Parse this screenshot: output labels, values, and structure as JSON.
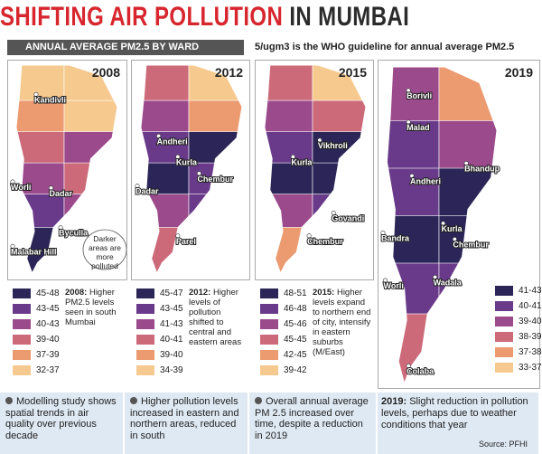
{
  "header": {
    "title_red": "SHIFTING AIR POLLUTION",
    "title_dark": "IN MUMBAI",
    "subtitle": "ANNUAL AVERAGE PM2.5 BY WARD",
    "note": "5/ugm3 is the WHO guideline for annual average PM2.5"
  },
  "panels": [
    {
      "year": "2008",
      "places": [
        "Kandivli",
        "Worli",
        "Dadar",
        "Byculla",
        "Malabar Hill"
      ],
      "callout": "Darker areas are more polluted",
      "legend": [
        {
          "label": "45-48",
          "color": "#2b2657"
        },
        {
          "label": "43-45",
          "color": "#6a3a8a"
        },
        {
          "label": "40-43",
          "color": "#9b4a8c"
        },
        {
          "label": "39-40",
          "color": "#cc6a7a"
        },
        {
          "label": "37-39",
          "color": "#ec9a70"
        },
        {
          "label": "32-37",
          "color": "#f6c98f"
        }
      ],
      "note_year": "2008:",
      "note": "Higher PM2.5 levels seen in south Mumbai"
    },
    {
      "year": "2012",
      "places": [
        "Andheri",
        "Kurla",
        "Chembur",
        "Dadar",
        "Parel"
      ],
      "legend": [
        {
          "label": "45-47",
          "color": "#2b2657"
        },
        {
          "label": "43-45",
          "color": "#6a3a8a"
        },
        {
          "label": "41-43",
          "color": "#9b4a8c"
        },
        {
          "label": "40-41",
          "color": "#cc6a7a"
        },
        {
          "label": "39-40",
          "color": "#ec9a70"
        },
        {
          "label": "34-39",
          "color": "#f6c98f"
        }
      ],
      "note_year": "2012:",
      "note": "Higher levels of pollution shifted to central and eastern areas"
    },
    {
      "year": "2015",
      "places": [
        "Vikhroli",
        "Kurla",
        "Govandi",
        "Chembur"
      ],
      "legend": [
        {
          "label": "48-51",
          "color": "#2b2657"
        },
        {
          "label": "46-48",
          "color": "#6a3a8a"
        },
        {
          "label": "45-46",
          "color": "#9b4a8c"
        },
        {
          "label": "45-45",
          "color": "#cc6a7a"
        },
        {
          "label": "42-45",
          "color": "#ec9a70"
        },
        {
          "label": "39-42",
          "color": "#f6c98f"
        }
      ],
      "note_year": "2015:",
      "note": "Higher levels expand to northern end of city, intensify in eastern suburbs (M/East)"
    },
    {
      "year": "2019",
      "places": [
        "Borivli",
        "Malad",
        "Bhandup",
        "Andheri",
        "Bandra",
        "Kurla",
        "Chembur",
        "Worli",
        "Wadala",
        "Colaba"
      ],
      "legend": [
        {
          "label": "41-43",
          "color": "#2b2657"
        },
        {
          "label": "40-41",
          "color": "#6a3a8a"
        },
        {
          "label": "39-40",
          "color": "#9b4a8c"
        },
        {
          "label": "38-39",
          "color": "#cc6a7a"
        },
        {
          "label": "37-38",
          "color": "#ec9a70"
        },
        {
          "label": "33-37",
          "color": "#f6c98f"
        }
      ],
      "note_year": "2019:",
      "note": "Slight reduction in pollution levels, perhaps due to weather conditions that year"
    }
  ],
  "bullets": [
    "Modelling study shows spatial trends in air quality over previous decade",
    "Higher pollution levels increased in eastern and northern areas, reduced in south",
    "Overall annual average PM 2.5 increased over time, despite a reduction in 2019"
  ],
  "source": "Source: PFHI"
}
